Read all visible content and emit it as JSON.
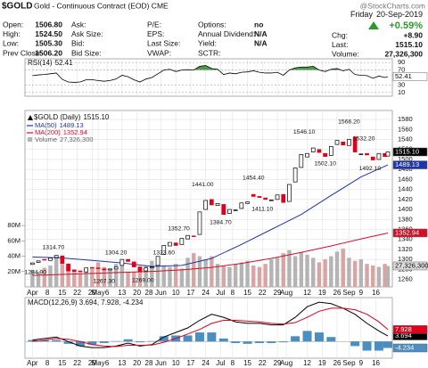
{
  "header": {
    "symbol": "$GOLD",
    "description": "Gold - Continuous Contract (EOD) CME",
    "brand": "@StockCharts.com"
  },
  "quote": {
    "columns": [
      [
        {
          "label": "Open:",
          "value": "1506.80"
        },
        {
          "label": "High:",
          "value": "1524.50"
        },
        {
          "label": "Low:",
          "value": "1505.30"
        },
        {
          "label": "Prev Close:",
          "value": "1506.20"
        }
      ],
      [
        {
          "label": "Ask:"
        },
        {
          "label": "Ask Size:"
        },
        {
          "label": "Bid:"
        },
        {
          "label": "Bid Size:"
        }
      ],
      [
        {
          "label": "P/E:"
        },
        {
          "label": "EPS:"
        },
        {
          "label": "Last Size:"
        },
        {
          "label": "VWAP:"
        }
      ],
      [
        {
          "label": "Options:",
          "value": "no"
        },
        {
          "label": "Annual Dividend:",
          "value": "N/A"
        },
        {
          "label": "Yield:",
          "value": "N/A"
        },
        {
          "label": "SCTR:"
        }
      ]
    ],
    "day": "Friday",
    "date": "20-Sep-2019",
    "change_pct": "+0.59%",
    "summary": [
      {
        "label": "Chg:",
        "value": "+8.90"
      },
      {
        "label": "Last:",
        "value": "1515.10"
      },
      {
        "label": "Volume:",
        "value": "27,326,300"
      }
    ]
  },
  "chart_data": [
    {
      "type": "line",
      "name": "RSI(14)",
      "last_label": "52.41",
      "color": "#000000",
      "fill_color": "#4a9a4a",
      "fill_above": 70,
      "x": [
        0,
        2,
        4,
        6,
        8,
        10,
        12,
        14,
        16,
        18,
        20,
        22,
        24,
        26,
        28,
        30,
        32,
        34,
        36,
        38,
        40,
        42,
        44,
        46,
        48,
        50,
        52,
        54,
        56,
        58,
        60,
        62,
        64,
        66,
        68,
        70,
        72,
        74,
        76,
        78,
        80,
        82,
        84,
        86,
        88,
        90,
        92,
        94,
        96,
        98,
        100,
        102,
        104,
        106,
        108,
        110,
        112,
        114,
        116,
        118,
        119
      ],
      "values": [
        55,
        57,
        58,
        60,
        62,
        45,
        38,
        37,
        38,
        44,
        44,
        42,
        40,
        42,
        46,
        56,
        52,
        44,
        38,
        46,
        50,
        60,
        70,
        72,
        66,
        70,
        71,
        70,
        80,
        82,
        74,
        72,
        58,
        62,
        60,
        64,
        65,
        68,
        64,
        62,
        62,
        64,
        56,
        70,
        76,
        78,
        78,
        80,
        70,
        66,
        72,
        74,
        68,
        72,
        58,
        56,
        55,
        48,
        54,
        50,
        52.41
      ],
      "ylim": [
        0,
        100
      ],
      "yticks": [
        10,
        30,
        70,
        90
      ],
      "grid": true
    },
    {
      "type": "candlestick",
      "title": "$GOLD (Daily)",
      "last_label": "1515.10",
      "up_color": "#000000",
      "down_color": "#e0001b",
      "xlim": [
        -2.5,
        120.5
      ],
      "xticks": [
        {
          "value": 0,
          "label": "Apr"
        },
        {
          "value": 5,
          "label": "8"
        },
        {
          "value": 10,
          "label": "15"
        },
        {
          "value": 15,
          "label": "22"
        },
        {
          "value": 20,
          "label": "29"
        },
        {
          "value": 22,
          "label": "May"
        },
        {
          "value": 25,
          "label": "6"
        },
        {
          "value": 30,
          "label": "13"
        },
        {
          "value": 35,
          "label": "20"
        },
        {
          "value": 39,
          "label": "28"
        },
        {
          "value": 43,
          "label": "Jun"
        },
        {
          "value": 48,
          "label": "10"
        },
        {
          "value": 53,
          "label": "17"
        },
        {
          "value": 58,
          "label": "24"
        },
        {
          "value": 63,
          "label": "Jul"
        },
        {
          "value": 67,
          "label": "8"
        },
        {
          "value": 72,
          "label": "15"
        },
        {
          "value": 77,
          "label": "22"
        },
        {
          "value": 82,
          "label": "29"
        },
        {
          "value": 85,
          "label": "Aug"
        },
        {
          "value": 92,
          "label": "12"
        },
        {
          "value": 97,
          "label": "19"
        },
        {
          "value": 102,
          "label": "26"
        },
        {
          "value": 106,
          "label": "Sep"
        },
        {
          "value": 110,
          "label": "9"
        },
        {
          "value": 115,
          "label": "16"
        }
      ],
      "ylim": [
        1245,
        1598
      ],
      "yticks": [
        1260,
        1280,
        1300,
        1320,
        1340,
        1360,
        1380,
        1400,
        1420,
        1440,
        1460,
        1480,
        1500,
        1520,
        1540,
        1560,
        1580
      ],
      "grid": true,
      "x": [
        0,
        2,
        4,
        6,
        8,
        10,
        12,
        14,
        16,
        18,
        20,
        22,
        24,
        26,
        28,
        30,
        32,
        34,
        36,
        38,
        40,
        42,
        44,
        46,
        48,
        50,
        52,
        54,
        56,
        58,
        60,
        62,
        64,
        66,
        68,
        70,
        72,
        74,
        76,
        78,
        80,
        82,
        84,
        86,
        88,
        90,
        92,
        94,
        96,
        98,
        100,
        102,
        104,
        106,
        108,
        110,
        112,
        114,
        116,
        118,
        119
      ],
      "open": [
        1290,
        1294,
        1300,
        1298,
        1304,
        1307,
        1291,
        1279,
        1277,
        1275,
        1284,
        1283,
        1281,
        1279,
        1281,
        1288,
        1300,
        1295,
        1285,
        1277,
        1283,
        1288,
        1310,
        1327,
        1333,
        1330,
        1341,
        1347,
        1350,
        1400,
        1420,
        1408,
        1410,
        1392,
        1398,
        1402,
        1412,
        1430,
        1426,
        1423,
        1418,
        1420,
        1430,
        1416,
        1455,
        1484,
        1505,
        1515,
        1520,
        1512,
        1508,
        1530,
        1535,
        1528,
        1545,
        1510,
        1512,
        1505,
        1500,
        1512,
        1506.8
      ],
      "close": [
        1293,
        1297,
        1299,
        1303,
        1308,
        1292,
        1277,
        1276,
        1275,
        1283,
        1283,
        1282,
        1279,
        1281,
        1285,
        1300,
        1296,
        1285,
        1276,
        1283,
        1285,
        1306,
        1328,
        1334,
        1328,
        1342,
        1348,
        1346,
        1395,
        1418,
        1409,
        1412,
        1390,
        1400,
        1399,
        1413,
        1415,
        1426,
        1424,
        1420,
        1419,
        1429,
        1414,
        1450,
        1483,
        1510,
        1512,
        1523,
        1514,
        1506,
        1526,
        1538,
        1529,
        1540,
        1515,
        1511,
        1509,
        1499,
        1512,
        1506,
        1515.1
      ],
      "volume_name": "Volume",
      "volume_last_label": "27,326,300",
      "volume_color": "#b4b4b4",
      "volume_down_color": "#d8a4a4",
      "volume": [
        22000000.0,
        20000000.0,
        25000000.0,
        28000000.0,
        38000000.0,
        30000000.0,
        26000000.0,
        22000000.0,
        18000000.0,
        20000000.0,
        24000000.0,
        32000000.0,
        26000000.0,
        22000000.0,
        30000000.0,
        28000000.0,
        20000000.0,
        20000000.0,
        26000000.0,
        28000000.0,
        34000000.0,
        30000000.0,
        28000000.0,
        26000000.0,
        30000000.0,
        24000000.0,
        38000000.0,
        44000000.0,
        40000000.0,
        36000000.0,
        40000000.0,
        30000000.0,
        28000000.0,
        26000000.0,
        30000000.0,
        32000000.0,
        34000000.0,
        28000000.0,
        26000000.0,
        30000000.0,
        36000000.0,
        38000000.0,
        44000000.0,
        48000000.0,
        40000000.0,
        45000000.0,
        42000000.0,
        38000000.0,
        32000000.0,
        36000000.0,
        40000000.0,
        46000000.0,
        50000000.0,
        38000000.0,
        34000000.0,
        36000000.0,
        30000000.0,
        28000000.0,
        26000000.0,
        30000000.0,
        27326300
      ],
      "volume_lim": [
        0,
        230000000.0
      ],
      "volume_ticks": [
        {
          "value": 20000000.0,
          "label": "20M"
        },
        {
          "value": 40000000.0,
          "label": "40M"
        },
        {
          "value": 60000000.0,
          "label": "60M"
        },
        {
          "value": 80000000.0,
          "label": "80M"
        }
      ],
      "series": [
        {
          "name": "MA(50)",
          "last_label": "1489.13",
          "color": "#1f35a8",
          "x": [
            0,
            10,
            20,
            30,
            40,
            50,
            60,
            70,
            80,
            90,
            100,
            110,
            119
          ],
          "values": [
            1305,
            1303,
            1298,
            1293,
            1286,
            1288,
            1302,
            1330,
            1360,
            1390,
            1428,
            1465,
            1489.13
          ]
        },
        {
          "name": "MA(200)",
          "last_label": "1352.94",
          "color": "#d0102a",
          "x": [
            0,
            10,
            20,
            30,
            40,
            50,
            60,
            70,
            80,
            90,
            100,
            110,
            119
          ],
          "values": [
            1268,
            1270,
            1272,
            1274,
            1276,
            1279,
            1284,
            1292,
            1302,
            1314,
            1327,
            1341,
            1352.94
          ]
        }
      ],
      "annotations": [
        {
          "x": 1,
          "value": 1284.9,
          "label": "1284.90"
        },
        {
          "x": 7,
          "value": 1314.7,
          "label": "1314.70"
        },
        {
          "x": 24,
          "value": 1267.3,
          "label": "1267.30"
        },
        {
          "x": 28,
          "value": 1304.2,
          "label": "1304.20"
        },
        {
          "x": 37,
          "value": 1269.0,
          "label": "1269.00"
        },
        {
          "x": 44,
          "value": 1323.6,
          "label": "1323.60"
        },
        {
          "x": 49,
          "value": 1352.7,
          "label": "1352.70"
        },
        {
          "x": 63,
          "value": 1384.7,
          "label": "1384.70"
        },
        {
          "x": 57,
          "value": 1441.0,
          "label": "1441.00"
        },
        {
          "x": 74,
          "value": 1454.4,
          "label": "1454.40"
        },
        {
          "x": 77,
          "value": 1411.1,
          "label": "1411.10"
        },
        {
          "x": 91,
          "value": 1546.1,
          "label": "1546.10"
        },
        {
          "x": 98,
          "value": 1502.1,
          "label": "1502.10"
        },
        {
          "x": 106,
          "value": 1566.2,
          "label": "1566.20"
        },
        {
          "x": 111,
          "value": 1532.2,
          "label": "1532.20"
        },
        {
          "x": 113,
          "value": 1492.1,
          "label": "1492.10"
        }
      ]
    },
    {
      "type": "macd",
      "legend": "MACD(12,26,9) 3.694, 7.928, -4.234",
      "ylim": [
        -11,
        29
      ],
      "x": [
        0,
        4,
        8,
        12,
        16,
        20,
        24,
        28,
        32,
        36,
        40,
        44,
        48,
        52,
        56,
        60,
        64,
        68,
        72,
        76,
        80,
        84,
        88,
        92,
        96,
        100,
        104,
        108,
        112,
        116,
        119
      ],
      "series": [
        {
          "name": "MACD",
          "kind": "line",
          "color": "#000000",
          "last_label": "3.694",
          "values": [
            1,
            2,
            3,
            0,
            -3,
            -4,
            -4,
            -3,
            -1,
            -3,
            -2,
            3,
            6,
            9,
            14,
            18,
            16,
            13,
            12,
            12,
            11,
            11,
            16,
            23,
            26,
            25,
            22,
            18,
            12,
            7,
            3.694
          ]
        },
        {
          "name": "Signal",
          "kind": "line",
          "color": "#e0001b",
          "last_label": "7.928",
          "values": [
            0,
            1,
            2,
            1.5,
            0,
            -2,
            -3,
            -3.3,
            -2.5,
            -2.5,
            -2.3,
            -0.5,
            2,
            5,
            8,
            12,
            14,
            14,
            13.5,
            13,
            12,
            11.5,
            12.5,
            16,
            20,
            22,
            22,
            21,
            18,
            13,
            7.928
          ]
        },
        {
          "name": "Histogram",
          "kind": "bar",
          "color": "#4a8ec2",
          "last_label": "-4.234",
          "values": [
            1,
            1,
            1,
            -1.5,
            -3,
            -2,
            -1,
            0.3,
            1.5,
            -0.5,
            0.3,
            3.5,
            4,
            4,
            6,
            6,
            2,
            -1,
            -1.5,
            -1,
            -1,
            -0.5,
            3.5,
            7,
            6,
            3,
            0,
            -3,
            -6,
            -6,
            -4.234
          ]
        }
      ]
    }
  ]
}
